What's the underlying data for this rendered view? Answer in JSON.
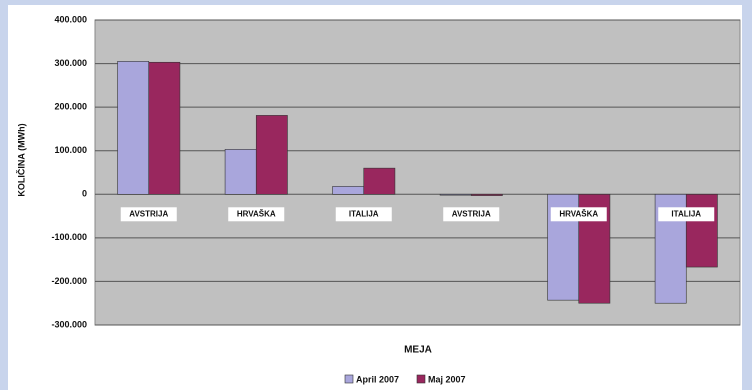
{
  "chart_data": {
    "type": "bar",
    "y_label": "KOLIČINA (MWh)",
    "x_label": "MEJA",
    "categories": [
      "AVSTRIJA",
      "HRVAŠKA",
      "ITALIJA",
      "AVSTRIJA",
      "HRVAŠKA",
      "ITALIJA"
    ],
    "series": [
      {
        "name": "April 2007",
        "color": "#a9a6dc",
        "values": [
          305000,
          103000,
          18000,
          -2000,
          -243000,
          -250000
        ]
      },
      {
        "name": "Maj 2007",
        "color": "#99275e",
        "values": [
          303000,
          181000,
          60000,
          -3000,
          -250000,
          -167000
        ]
      }
    ],
    "ylim": [
      -300000,
      400000
    ],
    "yticks": [
      {
        "value": -300000,
        "label": "-300.000"
      },
      {
        "value": -200000,
        "label": "-200.000"
      },
      {
        "value": -100000,
        "label": "-100.000"
      },
      0,
      {
        "value": 100000,
        "label": "100.000"
      },
      {
        "value": 200000,
        "label": "200.000"
      },
      {
        "value": 300000,
        "label": "300.000"
      },
      {
        "value": 400000,
        "label": "400.000"
      }
    ],
    "grid": true
  }
}
